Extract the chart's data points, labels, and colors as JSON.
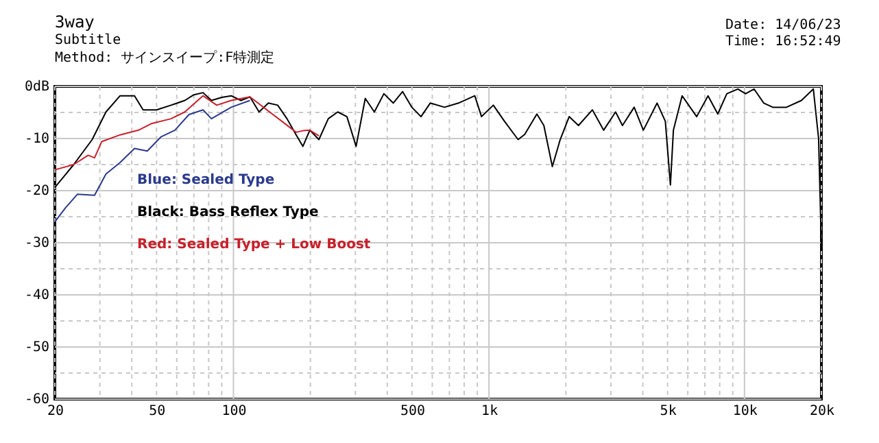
{
  "chart_data": {
    "type": "line",
    "title": "3way",
    "subtitle": "Subtitle",
    "annotations": [
      "Method: サインスイープ:F特測定",
      "Date: 14/06/23",
      "Time: 16:52:49"
    ],
    "log": "x",
    "grid": true,
    "legend": "left",
    "marker": "none",
    "line_style": "solid",
    "xlim": [
      20,
      20000
    ],
    "xticks": [
      20,
      {
        "value": 30,
        "label": null
      },
      {
        "value": 40,
        "label": null
      },
      50,
      {
        "value": 60,
        "label": null
      },
      {
        "value": 70,
        "label": null
      },
      {
        "value": 80,
        "label": null
      },
      {
        "value": 90,
        "label": null
      },
      100,
      {
        "value": 200,
        "label": null
      },
      {
        "value": 300,
        "label": null
      },
      {
        "value": 400,
        "label": null
      },
      500,
      {
        "value": 600,
        "label": null
      },
      {
        "value": 700,
        "label": null
      },
      {
        "value": 800,
        "label": null
      },
      {
        "value": 900,
        "label": null
      },
      {
        "value": 1000,
        "label": "1k"
      },
      {
        "value": 2000,
        "label": null
      },
      {
        "value": 3000,
        "label": null
      },
      {
        "value": 4000,
        "label": null
      },
      {
        "value": 5000,
        "label": "5k"
      },
      {
        "value": 6000,
        "label": null
      },
      {
        "value": 7000,
        "label": null
      },
      {
        "value": 8000,
        "label": null
      },
      {
        "value": 9000,
        "label": null
      },
      {
        "value": 10000,
        "label": "10k"
      },
      {
        "value": 20000,
        "label": "20k"
      }
    ],
    "ylim": [
      -60,
      0
    ],
    "yticks": [
      {
        "value": 0,
        "label": "0dB"
      },
      {
        "value": -5,
        "label": null
      },
      -10,
      {
        "value": -15,
        "label": null
      },
      -20,
      {
        "value": -25,
        "label": null
      },
      -30,
      {
        "value": -35,
        "label": null
      },
      -40,
      {
        "value": -45,
        "label": null
      },
      -50,
      {
        "value": -55,
        "label": null
      },
      -60
    ],
    "series": [
      {
        "name": "Blue: Sealed Type",
        "color": "#2b3a8c",
        "x": [
          20,
          22,
          24.5,
          28.6,
          31.7,
          36,
          41,
          46,
          52,
          59,
          67,
          76,
          82,
          98,
          116
        ],
        "values": [
          -26,
          -23.3,
          -20.7,
          -20.9,
          -16.8,
          -14.6,
          -11.9,
          -12.4,
          -9.7,
          -8.4,
          -5.4,
          -4.5,
          -6.2,
          -4,
          -2.7
        ]
      },
      {
        "name": "Black: Bass Reflex Type",
        "color": "#000000",
        "x": [
          20,
          23.7,
          28,
          31.7,
          36,
          41,
          44.3,
          50,
          57,
          64.5,
          70,
          76,
          82,
          90,
          98,
          107,
          116,
          126,
          137,
          149,
          162,
          176,
          187,
          199,
          216,
          235,
          256,
          278,
          302,
          328,
          356,
          388,
          422,
          459,
          499,
          542,
          589,
          670,
          760,
          880,
          935,
          1040,
          1150,
          1300,
          1380,
          1540,
          1640,
          1770,
          1900,
          2060,
          2240,
          2540,
          2810,
          3130,
          3330,
          3700,
          4020,
          4550,
          4900,
          5130,
          5270,
          5700,
          6500,
          7200,
          7860,
          8530,
          9420,
          10100,
          10900,
          11900,
          12900,
          14600,
          16700,
          18600,
          19500,
          20000
        ],
        "values": [
          -19.4,
          -15,
          -10.2,
          -4.9,
          -1.8,
          -1.8,
          -4.5,
          -4.5,
          -3.6,
          -2.7,
          -1.6,
          -1.2,
          -2.7,
          -2.1,
          -1.8,
          -2.7,
          -2,
          -4.9,
          -3.2,
          -3.6,
          -6.2,
          -9.3,
          -11.5,
          -8.4,
          -10.2,
          -6.2,
          -4.9,
          -5.8,
          -11.5,
          -2.3,
          -4.9,
          -1.4,
          -3.2,
          -1,
          -4,
          -5.8,
          -3.2,
          -4,
          -3.2,
          -1.8,
          -5.8,
          -3.6,
          -6.7,
          -10.2,
          -9.2,
          -5.3,
          -7.5,
          -15.4,
          -10.2,
          -5.8,
          -7.5,
          -4.5,
          -8.4,
          -4.9,
          -7.5,
          -4,
          -8.4,
          -3.2,
          -6.7,
          -18.9,
          -8.4,
          -1.8,
          -5.8,
          -1.8,
          -5.3,
          -1.4,
          -0.5,
          -1.4,
          -0.5,
          -3.2,
          -4,
          -4,
          -2.7,
          -0.5,
          -10,
          -31
        ]
      },
      {
        "name": "Red: Sealed Type + Low Boost",
        "color": "#c8202a",
        "x": [
          20,
          23.7,
          27,
          28.6,
          30.5,
          36,
          42.5,
          48,
          57,
          64.5,
          76,
          86,
          98,
          116,
          176,
          187,
          199,
          216
        ],
        "values": [
          -16,
          -15,
          -13.2,
          -13.7,
          -10.6,
          -9.3,
          -8.4,
          -7.1,
          -6.2,
          -4.9,
          -1.8,
          -3.6,
          -2.7,
          -2,
          -8.8,
          -8.5,
          -8.4,
          -9.5
        ]
      }
    ]
  }
}
